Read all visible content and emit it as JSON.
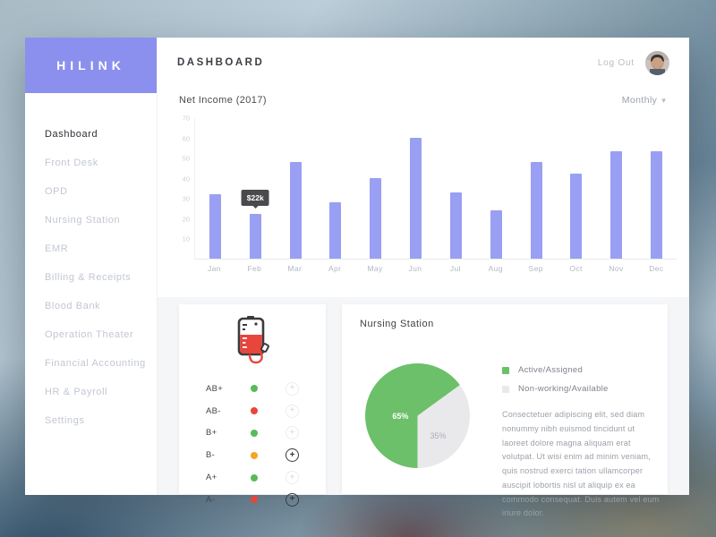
{
  "app": {
    "brand": "HILINK"
  },
  "header": {
    "title": "DASHBOARD",
    "logout_label": "Log Out"
  },
  "sidebar": {
    "items": [
      {
        "label": "Dashboard",
        "active": true
      },
      {
        "label": "Front Desk",
        "active": false
      },
      {
        "label": "OPD",
        "active": false
      },
      {
        "label": "Nursing Station",
        "active": false
      },
      {
        "label": "EMR",
        "active": false
      },
      {
        "label": "Billing & Receipts",
        "active": false
      },
      {
        "label": "Blood Bank",
        "active": false
      },
      {
        "label": "Operation Theater",
        "active": false
      },
      {
        "label": "Financial Accounting",
        "active": false
      },
      {
        "label": "HR & Payroll",
        "active": false
      },
      {
        "label": "Settings",
        "active": false
      }
    ]
  },
  "chart_data": [
    {
      "type": "bar",
      "title": "Net Income (2017)",
      "period_selector": "Monthly",
      "categories": [
        "Jan",
        "Feb",
        "Mar",
        "Apr",
        "May",
        "Jun",
        "Jul",
        "Aug",
        "Sep",
        "Oct",
        "Nov",
        "Dec"
      ],
      "values": [
        32,
        22,
        48,
        28,
        40,
        60,
        33,
        24,
        48,
        42,
        53,
        53
      ],
      "unit": "thousand dollars",
      "y_ticks": [
        10,
        20,
        30,
        40,
        50,
        60,
        70
      ],
      "ylim": [
        0,
        70
      ],
      "grid": false,
      "bar_color": "#999ff2",
      "tooltip": {
        "index": 1,
        "label": "$22k"
      }
    },
    {
      "type": "pie",
      "title": "Nursing Station",
      "slices": [
        {
          "label": "Active/Assigned",
          "value": 65,
          "color": "#6cc069",
          "text_label": "65%"
        },
        {
          "label": "Non-working/Available",
          "value": 35,
          "color": "#e9e9ec",
          "text_label": "35%"
        }
      ],
      "legend_position": "right"
    }
  ],
  "blood_bank": {
    "icon": "blood-bag-icon",
    "rows": [
      {
        "type": "AB+",
        "status_color": "green",
        "action_style": "light"
      },
      {
        "type": "AB-",
        "status_color": "red",
        "action_style": "light"
      },
      {
        "type": "B+",
        "status_color": "green",
        "action_style": "light"
      },
      {
        "type": "B-",
        "status_color": "orange",
        "action_style": "dark"
      },
      {
        "type": "A+",
        "status_color": "green",
        "action_style": "light"
      },
      {
        "type": "A-",
        "status_color": "red",
        "action_style": "dark"
      }
    ]
  },
  "nursing": {
    "title": "Nursing Station",
    "description": "Consectetuer adipiscing elit, sed diam nonummy nibh euismod tincidunt ut laoreet dolore magna aliquam erat volutpat. Ut wisi enim ad minim veniam, quis nostrud exerci tation ullamcorper auscipit lobortis nisl ut aliquip ex ea commodo consequat. Duis autem vel eum iriure dolor."
  },
  "colors": {
    "accent_purple": "#8b90ee",
    "bar_purple": "#999ff2",
    "pie_green": "#6cc069",
    "pie_gray": "#e9e9ec",
    "status_green": "#57bb5a",
    "status_red": "#e8453c",
    "status_orange": "#f5a523",
    "tooltip_bg": "#4a4a4c"
  }
}
